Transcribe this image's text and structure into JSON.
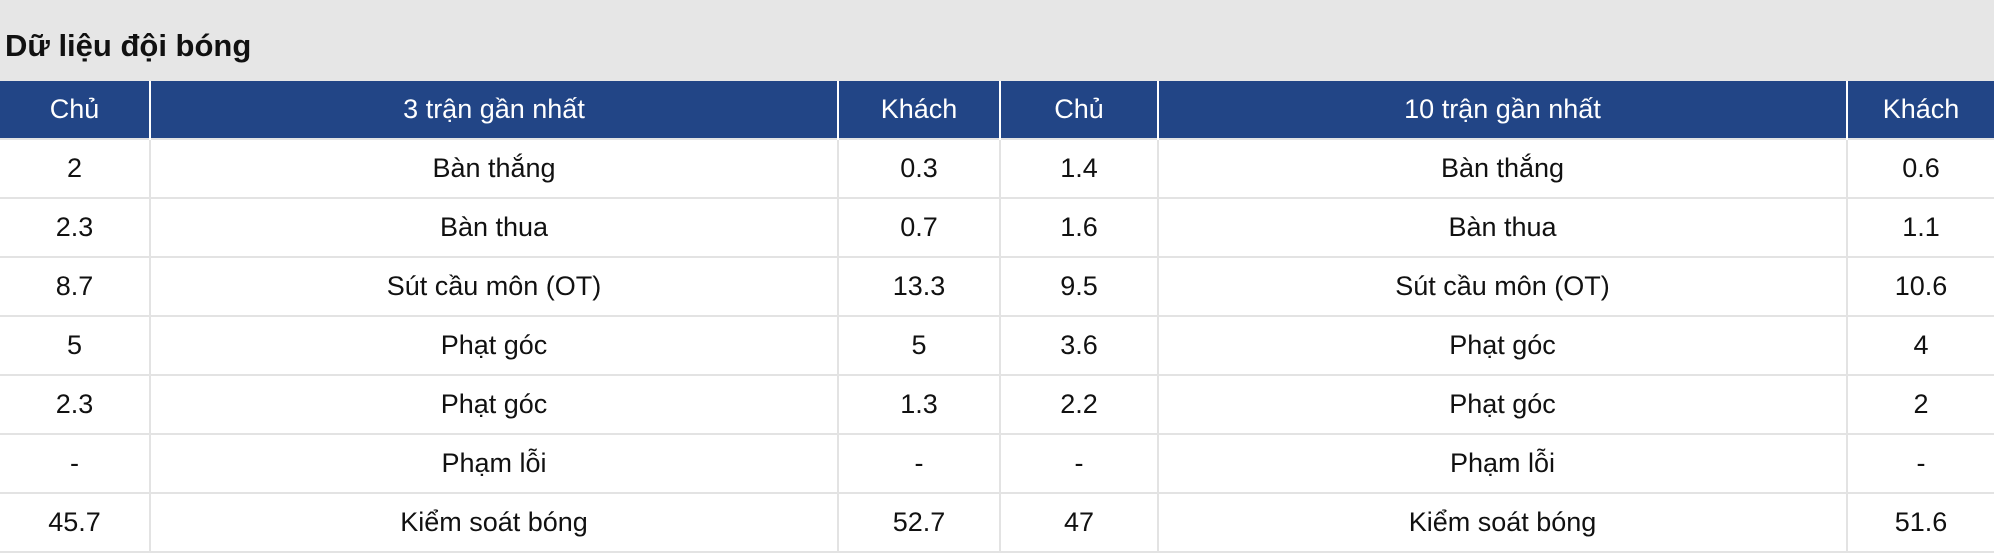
{
  "title": "Dữ liệu đội bóng",
  "headers": [
    "Chủ",
    "3 trận gần nhất",
    "Khách",
    "Chủ",
    "10 trận gần nhất",
    "Khách"
  ],
  "rows": [
    [
      "2",
      "Bàn thắng",
      "0.3",
      "1.4",
      "Bàn thắng",
      "0.6"
    ],
    [
      "2.3",
      "Bàn thua",
      "0.7",
      "1.6",
      "Bàn thua",
      "1.1"
    ],
    [
      "8.7",
      "Sút cầu môn (OT)",
      "13.3",
      "9.5",
      "Sút cầu môn (OT)",
      "10.6"
    ],
    [
      "5",
      "Phạt góc",
      "5",
      "3.6",
      "Phạt góc",
      "4"
    ],
    [
      "2.3",
      "Phạt góc",
      "1.3",
      "2.2",
      "Phạt góc",
      "2"
    ],
    [
      "-",
      "Phạm lỗi",
      "-",
      "-",
      "Phạm lỗi",
      "-"
    ],
    [
      "45.7",
      "Kiểm soát bóng",
      "52.7",
      "47",
      "Kiểm soát bóng",
      "51.6"
    ]
  ],
  "colors": {
    "header_bg": "#224586",
    "header_text": "#ffffff",
    "page_bg": "#e6e6e6"
  }
}
